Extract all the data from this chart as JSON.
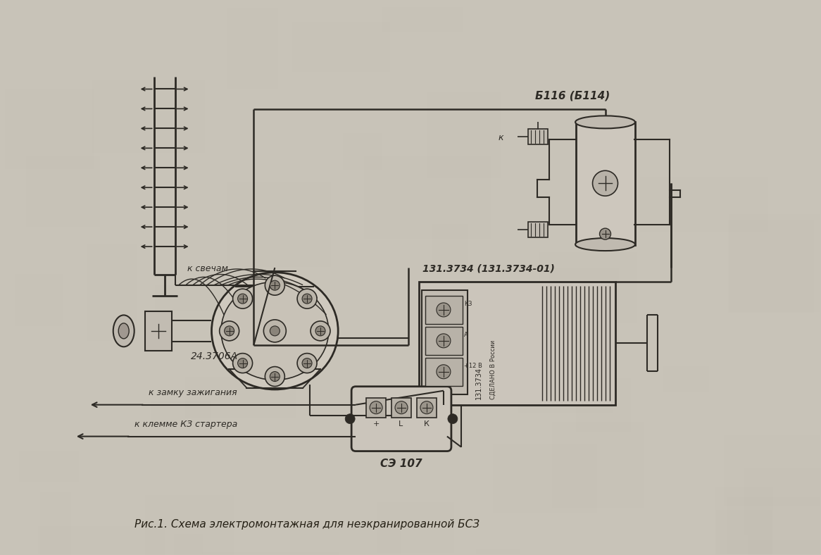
{
  "bg_color": "#c8c3b8",
  "line_color": "#2d2a25",
  "title_text": "Рис.1. Схема электромонтажная для неэкранированной БСЗ",
  "label_distributor": "24.3706А",
  "label_coil": "Б116 (Б114)",
  "label_igniter": "131.3734 (131.3734-01)",
  "label_switch": "СЭ 107",
  "label_sparks": "к свечам",
  "label_lock": "к замку зажигания",
  "label_starter": "к клемме КЗ стартера",
  "label_k": "к"
}
